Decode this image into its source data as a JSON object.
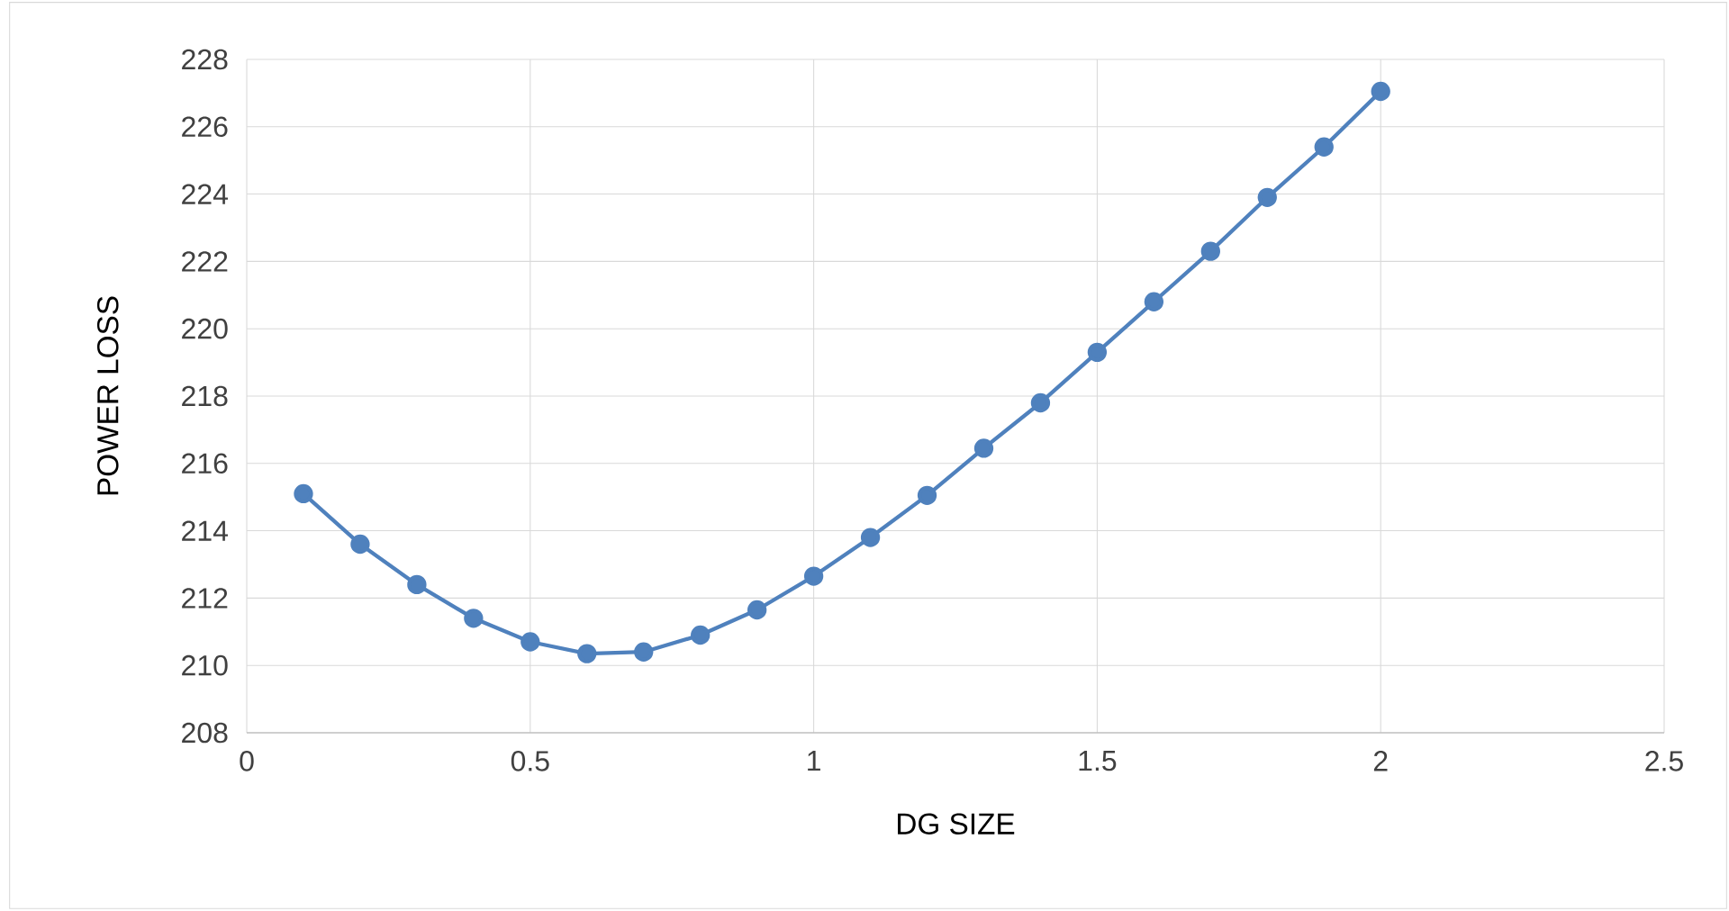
{
  "chart_data": {
    "type": "line",
    "xlabel": "DG SIZE",
    "ylabel": "POWER LOSS",
    "x": [
      0.1,
      0.2,
      0.3,
      0.4,
      0.5,
      0.6,
      0.7,
      0.8,
      0.9,
      1.0,
      1.1,
      1.2,
      1.3,
      1.4,
      1.5,
      1.6,
      1.7,
      1.8,
      1.9,
      2.0
    ],
    "series": [
      {
        "color": "#4f81bd",
        "values": [
          215.1,
          213.6,
          212.4,
          211.4,
          210.7,
          210.35,
          210.4,
          210.9,
          211.65,
          212.65,
          213.8,
          215.05,
          216.45,
          217.8,
          219.3,
          220.8,
          222.3,
          223.9,
          225.4,
          227.05
        ]
      }
    ],
    "xlim": [
      0,
      2.5
    ],
    "xticks": [
      0,
      0.5,
      1,
      1.5,
      2,
      2.5
    ],
    "ylim": [
      208,
      228
    ],
    "yticks": [
      208,
      210,
      212,
      214,
      216,
      218,
      220,
      222,
      224,
      226,
      228
    ],
    "grid": true,
    "marker": "circle",
    "line_style": "solid"
  }
}
